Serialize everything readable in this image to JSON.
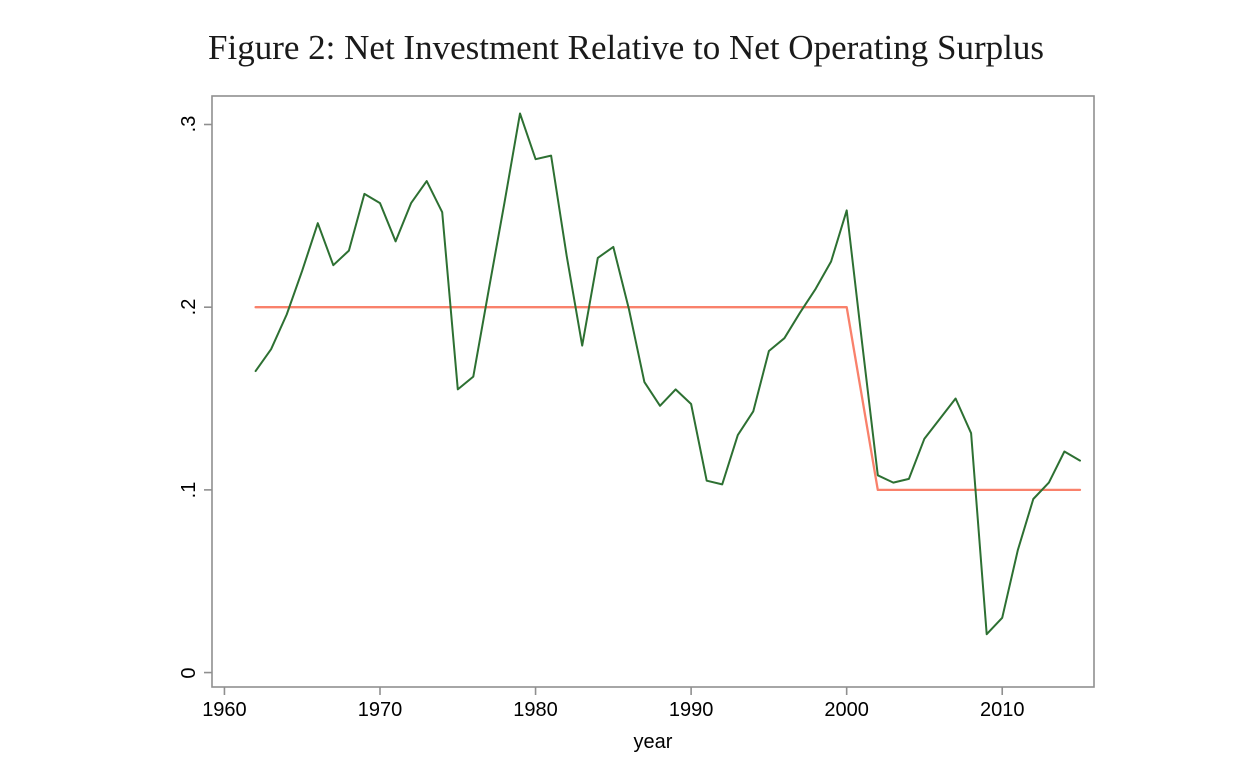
{
  "title": "Figure 2: Net Investment Relative to Net Operating Surplus",
  "colors": {
    "background": "#ffffff",
    "frame": "#8f8f8f",
    "text": "#000000",
    "series_green": "#2d7032",
    "series_red": "#f9816b"
  },
  "chart_data": {
    "type": "line",
    "title": "Figure 2: Net Investment Relative to Net Operating Surplus",
    "xlabel": "year",
    "ylabel": "",
    "xlim": [
      1959.2,
      2015.9
    ],
    "ylim": [
      -0.0079,
      0.3156
    ],
    "grid": false,
    "legend": "none",
    "xticks": [
      {
        "v": 1960,
        "label": "1960"
      },
      {
        "v": 1970,
        "label": "1970"
      },
      {
        "v": 1980,
        "label": "1980"
      },
      {
        "v": 1990,
        "label": "1990"
      },
      {
        "v": 2000,
        "label": "2000"
      },
      {
        "v": 2010,
        "label": "2010"
      }
    ],
    "yticks": [
      {
        "v": 0.0,
        "label": "0"
      },
      {
        "v": 0.1,
        "label": ".1"
      },
      {
        "v": 0.2,
        "label": ".2"
      },
      {
        "v": 0.3,
        "label": ".3"
      }
    ],
    "series": [
      {
        "name": "break-fit-line",
        "color": "#f9816b",
        "stroke_width": 2.3,
        "x": [
          1962,
          2000,
          2002,
          2015
        ],
        "y": [
          0.2,
          0.2,
          0.1,
          0.1
        ]
      },
      {
        "name": "net-investment-line",
        "color": "#2d7032",
        "stroke_width": 2,
        "x": [
          1962,
          1963,
          1964,
          1965,
          1966,
          1967,
          1968,
          1969,
          1970,
          1971,
          1972,
          1973,
          1974,
          1975,
          1976,
          1977,
          1978,
          1979,
          1980,
          1981,
          1982,
          1983,
          1984,
          1985,
          1986,
          1987,
          1988,
          1989,
          1990,
          1991,
          1992,
          1993,
          1994,
          1995,
          1996,
          1997,
          1998,
          1999,
          2000,
          2001,
          2002,
          2003,
          2004,
          2005,
          2006,
          2007,
          2008,
          2009,
          2010,
          2011,
          2012,
          2013,
          2014,
          2015
        ],
        "y": [
          0.165,
          0.177,
          0.196,
          0.22,
          0.246,
          0.223,
          0.231,
          0.262,
          0.257,
          0.236,
          0.257,
          0.269,
          0.252,
          0.155,
          0.162,
          0.21,
          0.257,
          0.306,
          0.281,
          0.283,
          0.228,
          0.179,
          0.227,
          0.233,
          0.199,
          0.159,
          0.146,
          0.155,
          0.147,
          0.105,
          0.103,
          0.13,
          0.143,
          0.176,
          0.183,
          0.197,
          0.21,
          0.225,
          0.253,
          0.18,
          0.108,
          0.104,
          0.106,
          0.128,
          0.139,
          0.15,
          0.131,
          0.021,
          0.03,
          0.067,
          0.095,
          0.104,
          0.121,
          0.116
        ]
      }
    ]
  }
}
